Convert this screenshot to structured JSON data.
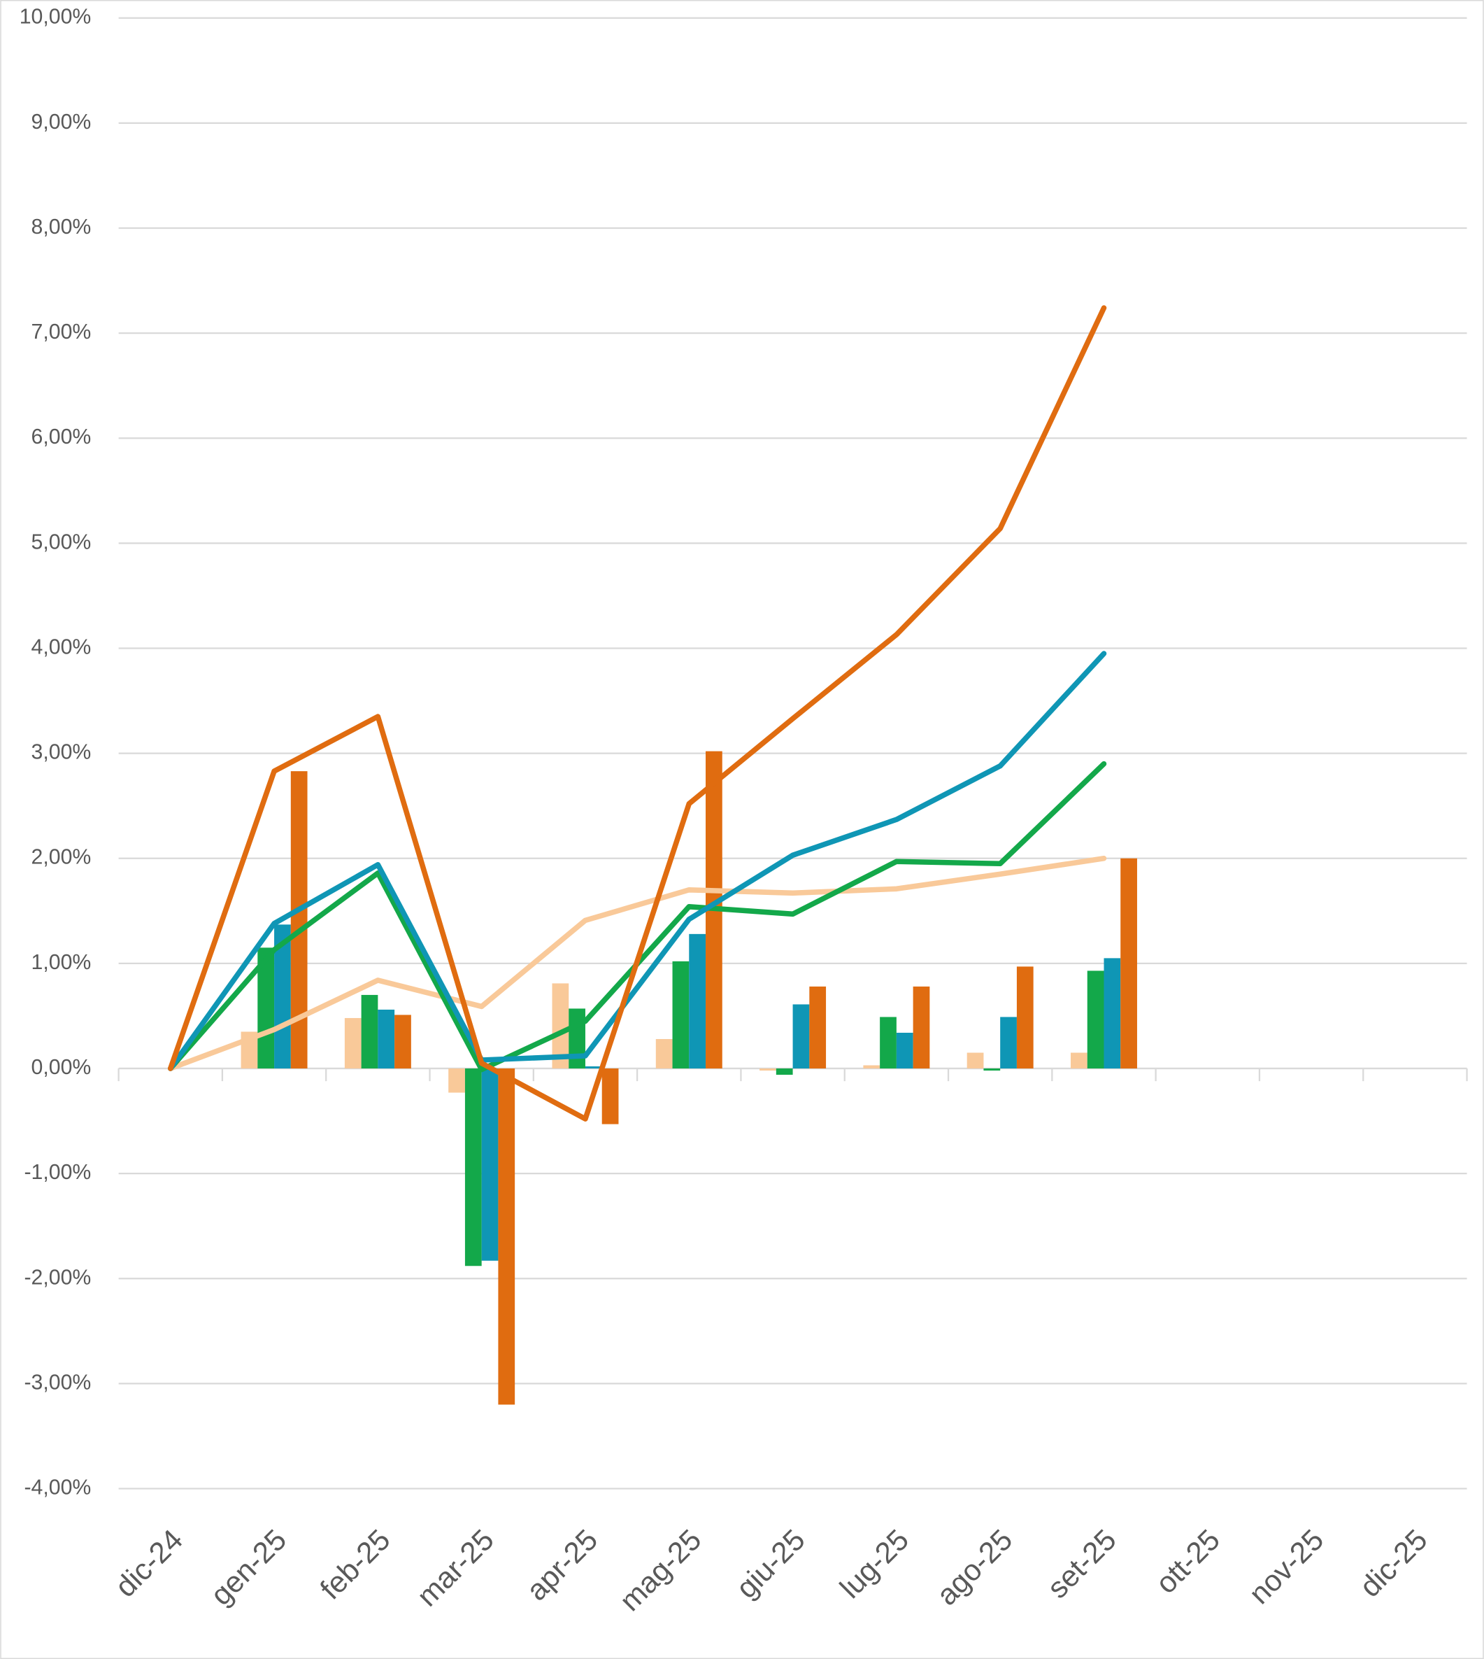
{
  "chart_data": {
    "type": "bar-line",
    "categories": [
      "dic-24",
      "gen-25",
      "feb-25",
      "mar-25",
      "apr-25",
      "mag-25",
      "giu-25",
      "lug-25",
      "ago-25",
      "set-25",
      "ott-25",
      "nov-25",
      "dic-25"
    ],
    "ylim": [
      -4,
      10
    ],
    "yticks": [
      {
        "value": -4,
        "label": "-4,00%"
      },
      {
        "value": -3,
        "label": "-3,00%"
      },
      {
        "value": -2,
        "label": "-2,00%"
      },
      {
        "value": -1,
        "label": "-1,00%"
      },
      {
        "value": 0,
        "label": "0,00%"
      },
      {
        "value": 1,
        "label": "1,00%"
      },
      {
        "value": 2,
        "label": "2,00%"
      },
      {
        "value": 3,
        "label": "3,00%"
      },
      {
        "value": 4,
        "label": "4,00%"
      },
      {
        "value": 5,
        "label": "5,00%"
      },
      {
        "value": 6,
        "label": "6,00%"
      },
      {
        "value": 7,
        "label": "7,00%"
      },
      {
        "value": 8,
        "label": "8,00%"
      },
      {
        "value": 9,
        "label": "9,00%"
      },
      {
        "value": 10,
        "label": "10,00%"
      }
    ],
    "grid": true,
    "series": [
      {
        "type": "bar",
        "color": "#f9c999",
        "values": [
          null,
          0.35,
          0.48,
          -0.23,
          0.81,
          0.28,
          -0.02,
          0.03,
          0.15,
          0.15,
          null,
          null,
          null
        ]
      },
      {
        "type": "bar",
        "color": "#13a84a",
        "values": [
          null,
          1.15,
          0.7,
          -1.88,
          0.57,
          1.02,
          -0.06,
          0.49,
          -0.02,
          0.93,
          null,
          null,
          null
        ]
      },
      {
        "type": "bar",
        "color": "#0f96b5",
        "values": [
          null,
          1.37,
          0.56,
          -1.83,
          0.02,
          1.28,
          0.61,
          0.34,
          0.49,
          1.05,
          null,
          null,
          null
        ]
      },
      {
        "type": "bar",
        "color": "#e06c10",
        "values": [
          null,
          2.83,
          0.51,
          -3.2,
          -0.53,
          3.02,
          0.78,
          0.78,
          0.97,
          2.0,
          null,
          null,
          null
        ]
      },
      {
        "type": "line",
        "color": "#f9c999",
        "values": [
          0,
          0.37,
          0.84,
          0.59,
          1.41,
          1.7,
          1.67,
          1.71,
          1.85,
          2.0,
          null,
          null,
          null
        ]
      },
      {
        "type": "line",
        "color": "#13a84a",
        "values": [
          0,
          1.13,
          1.86,
          -0.01,
          0.45,
          1.54,
          1.47,
          1.97,
          1.95,
          2.9,
          null,
          null,
          null
        ]
      },
      {
        "type": "line",
        "color": "#0f96b5",
        "values": [
          0,
          1.38,
          1.94,
          0.08,
          0.12,
          1.42,
          2.03,
          2.37,
          2.88,
          3.95,
          null,
          null,
          null
        ]
      },
      {
        "type": "line",
        "color": "#e06c10",
        "values": [
          0,
          2.83,
          3.35,
          0.05,
          -0.48,
          2.52,
          3.33,
          4.13,
          5.14,
          7.24,
          null,
          null,
          null
        ]
      }
    ]
  }
}
